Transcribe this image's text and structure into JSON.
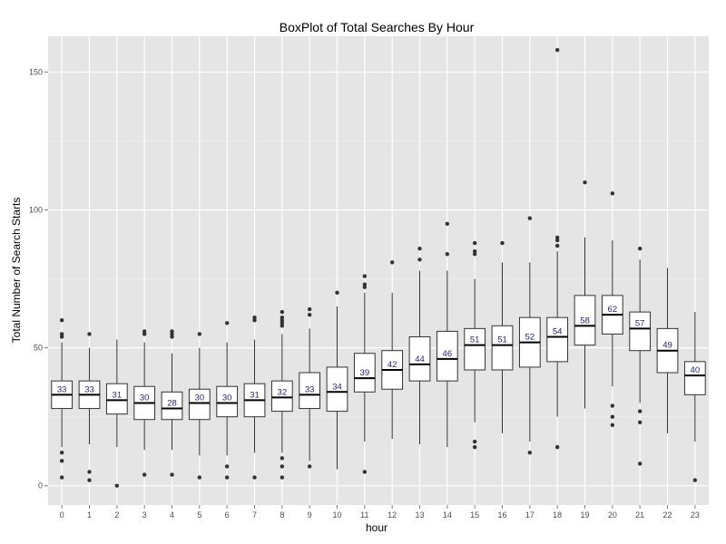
{
  "chart_data": {
    "type": "box",
    "title": "BoxPlot of Total Searches By Hour",
    "xlabel": "hour",
    "ylabel": "Total Number of Search Starts",
    "ylim": [
      -7,
      163
    ],
    "yticks": [
      0,
      50,
      100,
      150
    ],
    "grid": true,
    "colors": {
      "panel": "#e5e5e5",
      "grid_major": "#ffffff",
      "grid_minor": "#f2f2f2",
      "box_fill": "#ffffff",
      "box_stroke": "#333333",
      "outlier": "#333333",
      "median_label": "#1f1f7a"
    },
    "categories": [
      "0",
      "1",
      "2",
      "3",
      "4",
      "5",
      "6",
      "7",
      "8",
      "9",
      "10",
      "11",
      "12",
      "13",
      "14",
      "15",
      "16",
      "17",
      "18",
      "19",
      "20",
      "21",
      "22",
      "23"
    ],
    "boxes": [
      {
        "q1": 28,
        "median": 33,
        "q3": 38,
        "whisker_low": 14,
        "whisker_high": 52,
        "outliers": [
          3,
          9,
          12,
          54,
          55,
          60
        ],
        "label": "33"
      },
      {
        "q1": 28,
        "median": 33,
        "q3": 38,
        "whisker_low": 15,
        "whisker_high": 50,
        "outliers": [
          2,
          5,
          55
        ],
        "label": "33"
      },
      {
        "q1": 26,
        "median": 31,
        "q3": 37,
        "whisker_low": 14,
        "whisker_high": 53,
        "outliers": [
          0
        ],
        "label": "31"
      },
      {
        "q1": 24,
        "median": 30,
        "q3": 36,
        "whisker_low": 13,
        "whisker_high": 52,
        "outliers": [
          4,
          55,
          56
        ],
        "label": "30"
      },
      {
        "q1": 24,
        "median": 28,
        "q3": 34,
        "whisker_low": 13,
        "whisker_high": 48,
        "outliers": [
          4,
          54,
          55,
          56
        ],
        "label": "28"
      },
      {
        "q1": 24,
        "median": 30,
        "q3": 35,
        "whisker_low": 11,
        "whisker_high": 50,
        "outliers": [
          3,
          55
        ],
        "label": "30"
      },
      {
        "q1": 25,
        "median": 30,
        "q3": 36,
        "whisker_low": 11,
        "whisker_high": 52,
        "outliers": [
          3,
          7,
          59
        ],
        "label": "30"
      },
      {
        "q1": 25,
        "median": 31,
        "q3": 37,
        "whisker_low": 12,
        "whisker_high": 53,
        "outliers": [
          3,
          60,
          61
        ],
        "label": "31"
      },
      {
        "q1": 27,
        "median": 32,
        "q3": 38,
        "whisker_low": 12,
        "whisker_high": 55,
        "outliers": [
          3,
          7,
          10,
          58,
          59,
          60,
          61,
          63
        ],
        "label": "32"
      },
      {
        "q1": 28,
        "median": 33,
        "q3": 41,
        "whisker_low": 9,
        "whisker_high": 57,
        "outliers": [
          7,
          62,
          64
        ],
        "label": "33"
      },
      {
        "q1": 27,
        "median": 34,
        "q3": 43,
        "whisker_low": 6,
        "whisker_high": 65,
        "outliers": [
          70
        ],
        "label": "34"
      },
      {
        "q1": 34,
        "median": 39,
        "q3": 48,
        "whisker_low": 16,
        "whisker_high": 70,
        "outliers": [
          5,
          72,
          73,
          76
        ],
        "label": "39"
      },
      {
        "q1": 35,
        "median": 42,
        "q3": 49,
        "whisker_low": 17,
        "whisker_high": 70,
        "outliers": [
          81
        ],
        "label": "42"
      },
      {
        "q1": 38,
        "median": 44,
        "q3": 54,
        "whisker_low": 15,
        "whisker_high": 78,
        "outliers": [
          82,
          86
        ],
        "label": "44"
      },
      {
        "q1": 38,
        "median": 46,
        "q3": 56,
        "whisker_low": 14,
        "whisker_high": 78,
        "outliers": [
          84,
          95
        ],
        "label": "46"
      },
      {
        "q1": 42,
        "median": 51,
        "q3": 57,
        "whisker_low": 23,
        "whisker_high": 75,
        "outliers": [
          14,
          16,
          84,
          85,
          88
        ],
        "label": "51"
      },
      {
        "q1": 42,
        "median": 51,
        "q3": 58,
        "whisker_low": 19,
        "whisker_high": 81,
        "outliers": [
          88
        ],
        "label": "51"
      },
      {
        "q1": 43,
        "median": 52,
        "q3": 61,
        "whisker_low": 16,
        "whisker_high": 81,
        "outliers": [
          12,
          97
        ],
        "label": "52"
      },
      {
        "q1": 45,
        "median": 54,
        "q3": 61,
        "whisker_low": 25,
        "whisker_high": 85,
        "outliers": [
          14,
          87,
          89,
          90,
          158
        ],
        "label": "54"
      },
      {
        "q1": 51,
        "median": 58,
        "q3": 69,
        "whisker_low": 28,
        "whisker_high": 90,
        "outliers": [
          110
        ],
        "label": "58"
      },
      {
        "q1": 55,
        "median": 62,
        "q3": 69,
        "whisker_low": 36,
        "whisker_high": 89,
        "outliers": [
          22,
          25,
          29,
          106
        ],
        "label": "62"
      },
      {
        "q1": 49,
        "median": 57,
        "q3": 63,
        "whisker_low": 30,
        "whisker_high": 82,
        "outliers": [
          8,
          23,
          27,
          86
        ],
        "label": "57"
      },
      {
        "q1": 41,
        "median": 49,
        "q3": 57,
        "whisker_low": 19,
        "whisker_high": 79,
        "outliers": [],
        "label": "49"
      },
      {
        "q1": 33,
        "median": 40,
        "q3": 45,
        "whisker_low": 16,
        "whisker_high": 63,
        "outliers": [
          2
        ],
        "label": "40"
      }
    ]
  }
}
